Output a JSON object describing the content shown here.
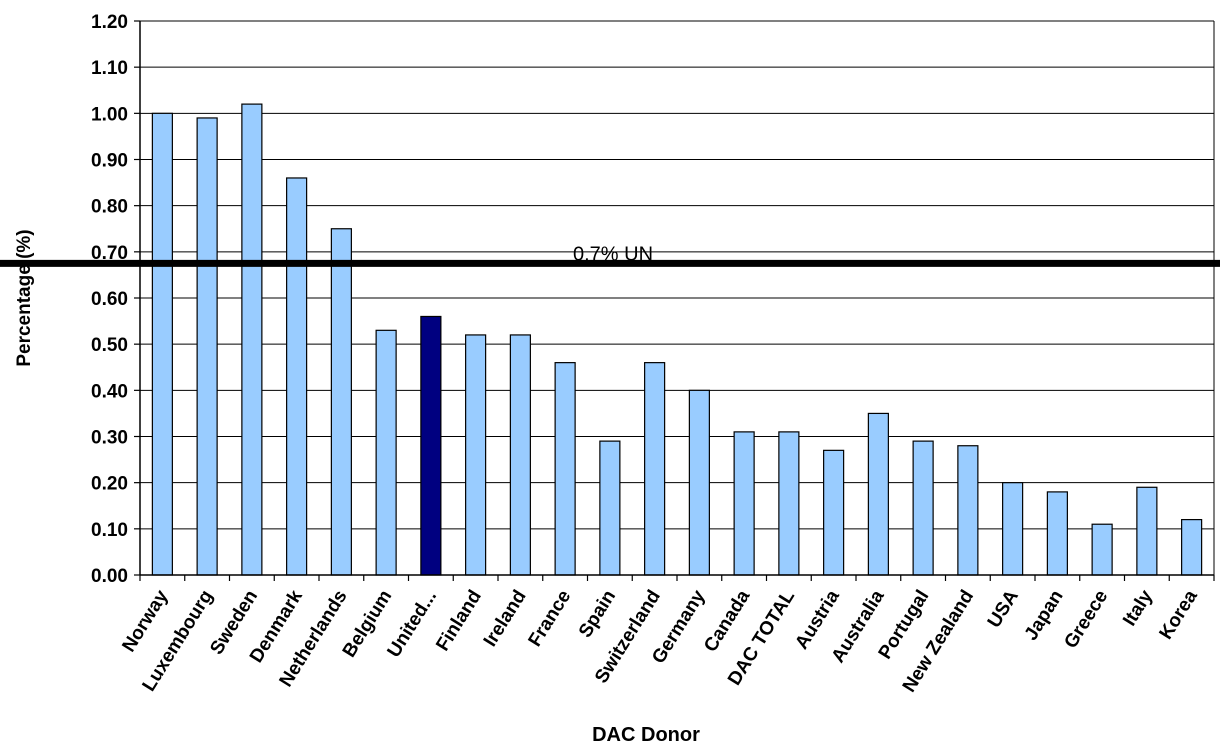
{
  "chart_data": {
    "type": "bar",
    "xlabel": "DAC Donor",
    "ylabel": "Percentage (%)",
    "ylim": [
      0,
      1.2
    ],
    "yticks": [
      "0.00",
      "0.10",
      "0.20",
      "0.30",
      "0.40",
      "0.50",
      "0.60",
      "0.70",
      "0.80",
      "0.90",
      "1.00",
      "1.10",
      "1.20"
    ],
    "grid": true,
    "categories": [
      "Norway",
      "Luxembourg",
      "Sweden",
      "Denmark",
      "Netherlands",
      "Belgium",
      "United...",
      "Finland",
      "Ireland",
      "France",
      "Spain",
      "Switzerland",
      "Germany",
      "Canada",
      "DAC TOTAL",
      "Austria",
      "Australia",
      "Portugal",
      "New Zealand",
      "USA",
      "Japan",
      "Greece",
      "Italy",
      "Korea"
    ],
    "values": [
      1.0,
      0.99,
      1.02,
      0.86,
      0.75,
      0.53,
      0.56,
      0.52,
      0.52,
      0.46,
      0.29,
      0.46,
      0.4,
      0.31,
      0.31,
      0.27,
      0.35,
      0.29,
      0.28,
      0.2,
      0.18,
      0.11,
      0.19,
      0.12
    ],
    "highlight_index": 6,
    "reference_line": {
      "label": "0.7% UN",
      "value": 0.675
    },
    "colors": {
      "bar": "#99ccff",
      "highlight": "#000080",
      "outline": "#000000",
      "reference": "#000000",
      "grid": "#000000"
    }
  }
}
